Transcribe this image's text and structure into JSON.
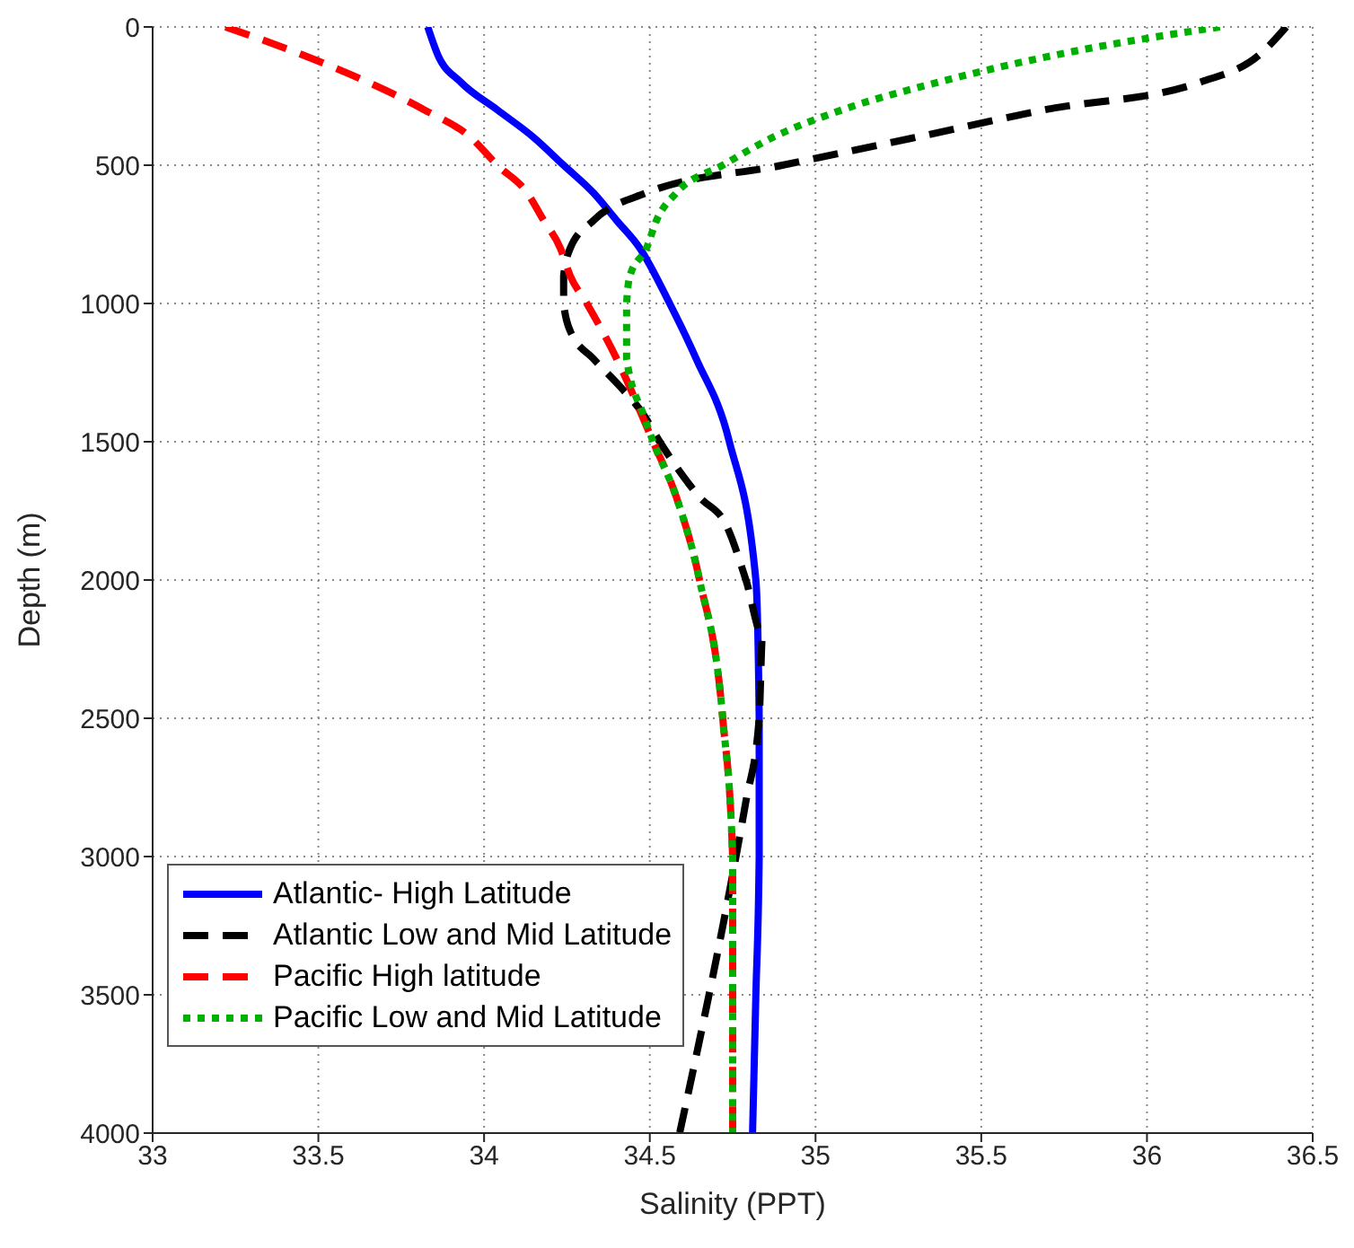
{
  "chart_data": {
    "type": "line",
    "xlabel": "Salinity (PPT)",
    "ylabel": "Depth (m)",
    "xlim": [
      33,
      36.5
    ],
    "xticks": [
      33,
      33.5,
      34,
      34.5,
      35,
      35.5,
      36,
      36.5
    ],
    "ylim": [
      4000,
      0
    ],
    "yticks": [
      0,
      500,
      1000,
      1500,
      2000,
      2500,
      3000,
      3500,
      4000
    ],
    "grid": true,
    "legend": "bottom left",
    "marker": "none",
    "series": [
      {
        "name": "Atlantic- High Latitude",
        "color": "#0000ff",
        "line_style": "solid",
        "x": [
          33.83,
          33.86,
          33.93,
          34.04,
          34.15,
          34.24,
          34.33,
          34.4,
          34.47,
          34.56,
          34.64,
          34.74,
          34.82,
          34.83,
          34.83,
          34.82,
          34.81
        ],
        "values": [
          0,
          100,
          200,
          300,
          400,
          500,
          600,
          700,
          800,
          1000,
          1200,
          1500,
          2000,
          2500,
          3000,
          3500,
          4000
        ]
      },
      {
        "name": "Atlantic Low and Mid Latitude",
        "color": "#000000",
        "line_style": "dashed",
        "x": [
          36.42,
          36.34,
          36.16,
          35.69,
          35.3,
          34.9,
          34.49,
          34.33,
          34.26,
          34.24,
          34.24,
          34.26,
          34.33,
          34.41,
          34.48,
          34.53,
          34.65,
          34.73,
          34.79,
          34.84,
          34.83,
          34.79,
          34.76,
          34.59
        ],
        "values": [
          0,
          100,
          200,
          300,
          400,
          500,
          600,
          700,
          800,
          900,
          1000,
          1100,
          1200,
          1300,
          1400,
          1500,
          1700,
          1800,
          2000,
          2200,
          2500,
          2800,
          3000,
          4000
        ]
      },
      {
        "name": "Pacific  High latitude",
        "color": "#ff0000",
        "line_style": "dashed",
        "x": [
          33.22,
          33.45,
          33.65,
          33.82,
          33.96,
          34.04,
          34.13,
          34.18,
          34.23,
          34.26,
          34.31,
          34.4,
          34.51,
          34.58,
          34.65,
          34.72,
          34.75,
          34.75
        ],
        "values": [
          0,
          100,
          200,
          300,
          400,
          500,
          600,
          700,
          800,
          900,
          1000,
          1200,
          1500,
          1700,
          2000,
          2500,
          3000,
          4000
        ]
      },
      {
        "name": "Pacific  Low and Mid Latitude",
        "color": "#00b000",
        "line_style": "dotted",
        "x": [
          36.22,
          35.73,
          35.37,
          35.08,
          34.87,
          34.72,
          34.58,
          34.52,
          34.49,
          34.44,
          34.43,
          34.43,
          34.48,
          34.51,
          34.58,
          34.65,
          34.72,
          34.75,
          34.75
        ],
        "values": [
          0,
          100,
          200,
          300,
          400,
          500,
          600,
          700,
          800,
          900,
          1000,
          1200,
          1400,
          1500,
          1700,
          2000,
          2500,
          3000,
          4000
        ]
      }
    ]
  }
}
